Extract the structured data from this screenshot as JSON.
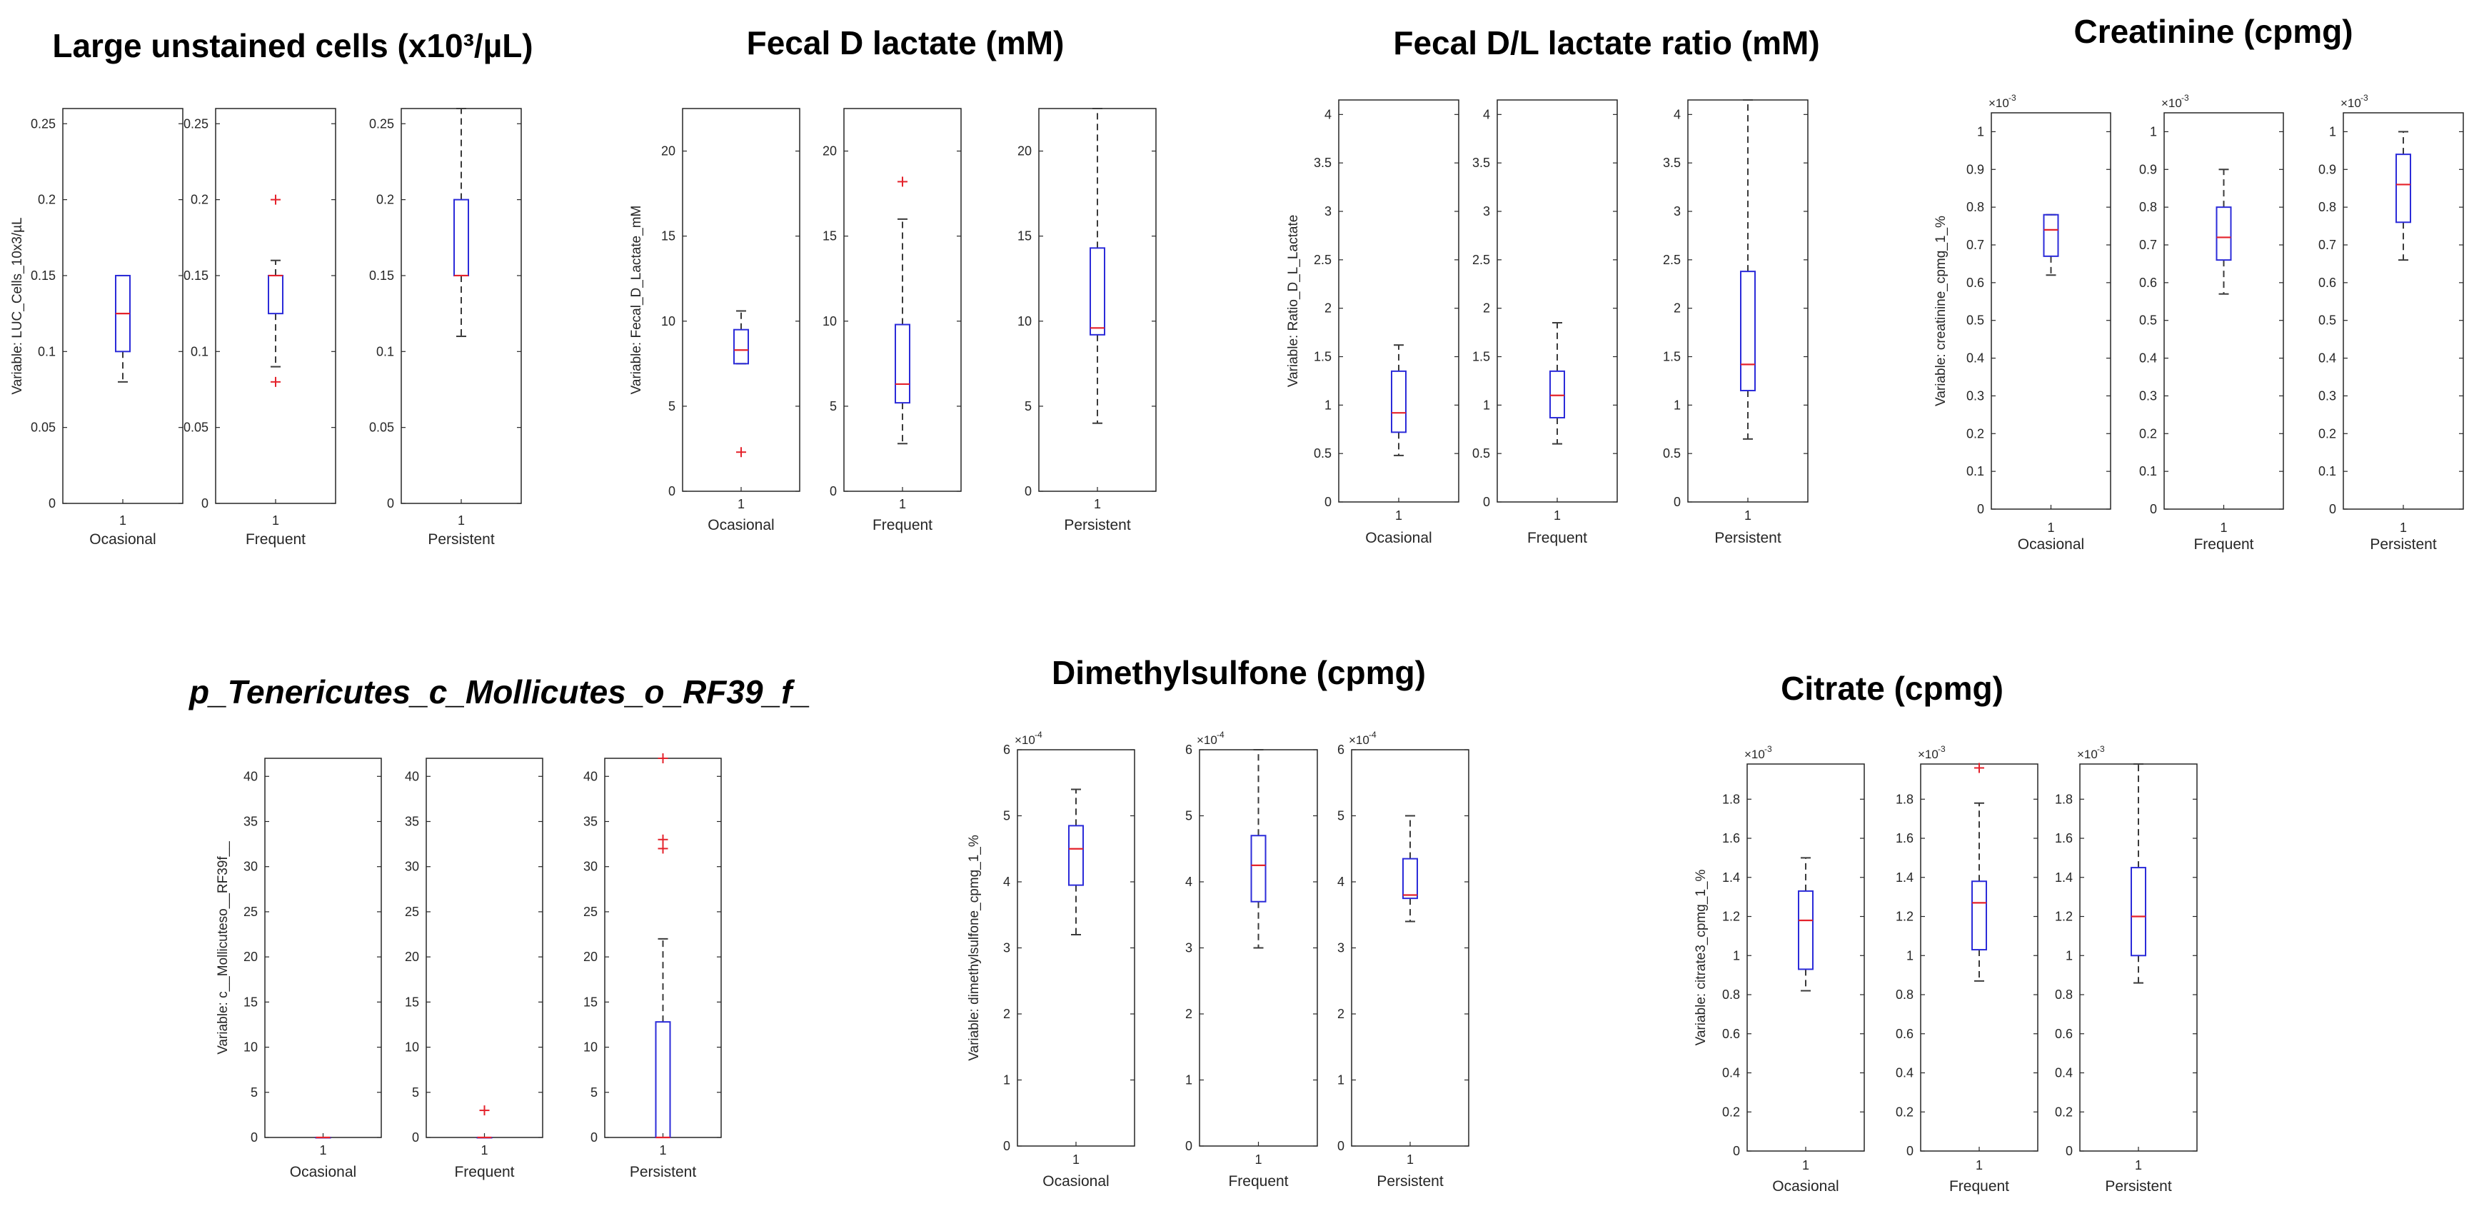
{
  "colors": {
    "box": "#2b2bd9",
    "median": "#e4222b",
    "outlier": "#e4222b",
    "whisker": "#3a3a3a",
    "axis": "#262626"
  },
  "chart_data": [
    {
      "type": "boxplot",
      "title": "Large unstained cells (x10³/µL)",
      "ylabel": "Variable: LUC_Cells_10x3/µL",
      "xlabels": [
        "Ocasional",
        "Frequent",
        "Persistent"
      ],
      "xtick": "1",
      "ylim": [
        0,
        0.26
      ],
      "yticks": [
        "0",
        "0.05",
        "0.1",
        "0.15",
        "0.2",
        "0.25"
      ],
      "sci": "",
      "groups": [
        {
          "name": "Ocasional",
          "q1": 0.1,
          "median": 0.125,
          "q3": 0.15,
          "wlo": 0.08,
          "whi": 0.15,
          "outliers": []
        },
        {
          "name": "Frequent",
          "q1": 0.125,
          "median": 0.15,
          "q3": 0.15,
          "wlo": 0.09,
          "whi": 0.16,
          "outliers": [
            0.2,
            0.08
          ]
        },
        {
          "name": "Persistent",
          "q1": 0.15,
          "median": 0.15,
          "q3": 0.2,
          "wlo": 0.11,
          "whi": 0.26,
          "outliers": []
        }
      ]
    },
    {
      "type": "boxplot",
      "title": "Fecal D lactate (mM)",
      "ylabel": "Variable: Fecal_D_Lactate_mM",
      "xlabels": [
        "Ocasional",
        "Frequent",
        "Persistent"
      ],
      "xtick": "1",
      "ylim": [
        0,
        22.5
      ],
      "yticks": [
        "0",
        "5",
        "10",
        "15",
        "20"
      ],
      "sci": "",
      "groups": [
        {
          "name": "Ocasional",
          "q1": 7.5,
          "median": 8.3,
          "q3": 9.5,
          "wlo": 7.5,
          "whi": 10.6,
          "outliers": [
            2.3
          ]
        },
        {
          "name": "Frequent",
          "q1": 5.2,
          "median": 6.3,
          "q3": 9.8,
          "wlo": 2.8,
          "whi": 16.0,
          "outliers": [
            18.2
          ]
        },
        {
          "name": "Persistent",
          "q1": 9.2,
          "median": 9.6,
          "q3": 14.3,
          "wlo": 4.0,
          "whi": 22.5,
          "outliers": []
        }
      ]
    },
    {
      "type": "boxplot",
      "title": "Fecal D/L lactate ratio (mM)",
      "ylabel": "Variable: Ratio_D_L_Lactate",
      "xlabels": [
        "Ocasional",
        "Frequent",
        "Persistent"
      ],
      "xtick": "1",
      "ylim": [
        0,
        4.15
      ],
      "yticks": [
        "0",
        "0.5",
        "1",
        "1.5",
        "2",
        "2.5",
        "3",
        "3.5",
        "4"
      ],
      "sci": "",
      "groups": [
        {
          "name": "Ocasional",
          "q1": 0.72,
          "median": 0.92,
          "q3": 1.35,
          "wlo": 0.48,
          "whi": 1.62,
          "outliers": []
        },
        {
          "name": "Frequent",
          "q1": 0.87,
          "median": 1.1,
          "q3": 1.35,
          "wlo": 0.6,
          "whi": 1.85,
          "outliers": []
        },
        {
          "name": "Persistent",
          "q1": 1.15,
          "median": 1.42,
          "q3": 2.38,
          "wlo": 0.65,
          "whi": 4.15,
          "outliers": []
        }
      ]
    },
    {
      "type": "boxplot",
      "title": "Creatinine (cpmg)",
      "ylabel": "Variable: creatinine_cpmg_1_%",
      "xlabels": [
        "Ocasional",
        "Frequent",
        "Persistent"
      ],
      "xtick": "1",
      "ylim": [
        0,
        1.05
      ],
      "yticks": [
        "0",
        "0.1",
        "0.2",
        "0.3",
        "0.4",
        "0.5",
        "0.6",
        "0.7",
        "0.8",
        "0.9",
        "1"
      ],
      "sci": "×10",
      "sci_exp": "-3",
      "groups": [
        {
          "name": "Ocasional",
          "q1": 0.67,
          "median": 0.74,
          "q3": 0.78,
          "wlo": 0.62,
          "whi": 0.78,
          "outliers": []
        },
        {
          "name": "Frequent",
          "q1": 0.66,
          "median": 0.72,
          "q3": 0.8,
          "wlo": 0.57,
          "whi": 0.9,
          "outliers": []
        },
        {
          "name": "Persistent",
          "q1": 0.76,
          "median": 0.86,
          "q3": 0.94,
          "wlo": 0.66,
          "whi": 1.0,
          "outliers": []
        }
      ]
    },
    {
      "type": "boxplot",
      "title": "p_Tenericutes_c_Mollicutes_o_RF39_f_",
      "ylabel": "Variable: c__Mollicuteso__RF39f__",
      "xlabels": [
        "Ocasional",
        "Frequent",
        "Persistent"
      ],
      "xtick": "1",
      "ylim": [
        0,
        42
      ],
      "yticks": [
        "0",
        "5",
        "10",
        "15",
        "20",
        "25",
        "30",
        "35",
        "40"
      ],
      "sci": "",
      "groups": [
        {
          "name": "Ocasional",
          "q1": 0,
          "median": 0,
          "q3": 0,
          "wlo": 0,
          "whi": 0,
          "outliers": []
        },
        {
          "name": "Frequent",
          "q1": 0,
          "median": 0,
          "q3": 0,
          "wlo": 0,
          "whi": 0,
          "outliers": [
            3
          ]
        },
        {
          "name": "Persistent",
          "q1": 0,
          "median": 0,
          "q3": 12.8,
          "wlo": 0,
          "whi": 22,
          "outliers": [
            42,
            33,
            32
          ]
        }
      ]
    },
    {
      "type": "boxplot",
      "title": "Dimethylsulfone (cpmg)",
      "ylabel": "Variable: dimethylsulfone_cpmg_1_%",
      "xlabels": [
        "Ocasional",
        "Frequent",
        "Persistent"
      ],
      "xtick": "1",
      "ylim": [
        0,
        6
      ],
      "yticks": [
        "0",
        "1",
        "2",
        "3",
        "4",
        "5",
        "6"
      ],
      "sci": "×10",
      "sci_exp": "-4",
      "groups": [
        {
          "name": "Ocasional",
          "q1": 3.95,
          "median": 4.5,
          "q3": 4.85,
          "wlo": 3.2,
          "whi": 5.4,
          "outliers": []
        },
        {
          "name": "Frequent",
          "q1": 3.7,
          "median": 4.25,
          "q3": 4.7,
          "wlo": 3.0,
          "whi": 6.0,
          "outliers": []
        },
        {
          "name": "Persistent",
          "q1": 3.75,
          "median": 3.8,
          "q3": 4.35,
          "wlo": 3.4,
          "whi": 5.0,
          "outliers": []
        }
      ]
    },
    {
      "type": "boxplot",
      "title": "Citrate (cpmg)",
      "ylabel": "Variable: citrate3_cpmg_1_%",
      "xlabels": [
        "Ocasional",
        "Frequent",
        "Persistent"
      ],
      "xtick": "1",
      "ylim": [
        0,
        1.98
      ],
      "yticks": [
        "0",
        "0.2",
        "0.4",
        "0.6",
        "0.8",
        "1",
        "1.2",
        "1.4",
        "1.6",
        "1.8"
      ],
      "sci": "×10",
      "sci_exp": "-3",
      "groups": [
        {
          "name": "Ocasional",
          "q1": 0.93,
          "median": 1.18,
          "q3": 1.33,
          "wlo": 0.82,
          "whi": 1.5,
          "outliers": []
        },
        {
          "name": "Frequent",
          "q1": 1.03,
          "median": 1.27,
          "q3": 1.38,
          "wlo": 0.87,
          "whi": 1.78,
          "outliers": [
            1.96
          ]
        },
        {
          "name": "Persistent",
          "q1": 1.0,
          "median": 1.2,
          "q3": 1.45,
          "wlo": 0.86,
          "whi": 1.98,
          "outliers": []
        }
      ]
    }
  ]
}
